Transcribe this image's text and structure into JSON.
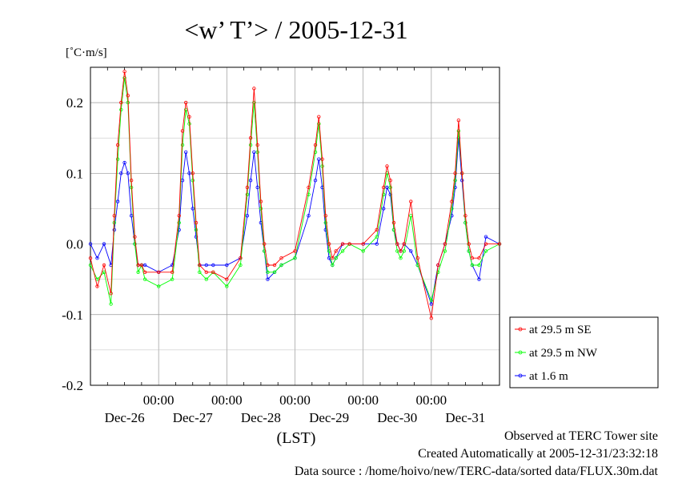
{
  "chart_data": {
    "type": "line",
    "title": "<w’ T’> / 2005-12-31",
    "ylabel": "[˚C·m/s]",
    "xlabel": "(LST)",
    "ylim": [
      -0.2,
      0.25
    ],
    "yticks": [
      "0.2",
      "0.1",
      "0.0",
      "-0.1",
      "-0.2"
    ],
    "x_time_labels": [
      "00:00",
      "00:00",
      "00:00",
      "00:00",
      "00:00"
    ],
    "x_day_labels": [
      "Dec-26",
      "Dec-27",
      "Dec-28",
      "Dec-29",
      "Dec-30",
      "Dec-31"
    ],
    "x_unit": "days since 2005-12-26 00:00 LST",
    "xlim": [
      0,
      6
    ],
    "grid": true,
    "legend_position": "right",
    "series": [
      {
        "name": "at 29.5 m SE",
        "color": "#ff0000",
        "x": [
          0,
          0.1,
          0.2,
          0.3,
          0.35,
          0.4,
          0.45,
          0.5,
          0.55,
          0.6,
          0.65,
          0.7,
          0.75,
          0.8,
          1.0,
          1.2,
          1.3,
          1.35,
          1.4,
          1.45,
          1.5,
          1.55,
          1.6,
          1.7,
          1.8,
          2.0,
          2.2,
          2.3,
          2.35,
          2.4,
          2.45,
          2.5,
          2.55,
          2.6,
          2.7,
          2.8,
          3.0,
          3.2,
          3.3,
          3.35,
          3.4,
          3.45,
          3.5,
          3.55,
          3.6,
          3.7,
          3.8,
          4.0,
          4.2,
          4.3,
          4.35,
          4.4,
          4.45,
          4.5,
          4.55,
          4.6,
          4.7,
          4.8,
          5.0,
          5.1,
          5.2,
          5.3,
          5.35,
          5.4,
          5.45,
          5.5,
          5.55,
          5.6,
          5.7,
          5.8,
          6.0
        ],
        "y": [
          -0.02,
          -0.06,
          -0.03,
          -0.07,
          0.04,
          0.14,
          0.2,
          0.244,
          0.21,
          0.09,
          0.01,
          -0.03,
          -0.03,
          -0.04,
          -0.04,
          -0.04,
          0.04,
          0.16,
          0.2,
          0.18,
          0.1,
          0.03,
          -0.03,
          -0.04,
          -0.04,
          -0.05,
          -0.02,
          0.08,
          0.15,
          0.22,
          0.14,
          0.06,
          0.0,
          -0.03,
          -0.03,
          -0.02,
          -0.01,
          0.08,
          0.14,
          0.18,
          0.12,
          0.04,
          0.0,
          -0.02,
          -0.01,
          0.0,
          0.0,
          0.0,
          0.02,
          0.08,
          0.11,
          0.09,
          0.03,
          0.0,
          -0.01,
          0.0,
          0.06,
          -0.02,
          -0.105,
          -0.03,
          0.0,
          0.06,
          0.1,
          0.175,
          0.1,
          0.04,
          0.0,
          -0.02,
          -0.02,
          0.0,
          0.0
        ]
      },
      {
        "name": "at 29.5 m NW",
        "color": "#00ff00",
        "x": [
          0,
          0.1,
          0.2,
          0.3,
          0.35,
          0.4,
          0.45,
          0.5,
          0.55,
          0.6,
          0.65,
          0.7,
          0.75,
          0.8,
          1.0,
          1.2,
          1.3,
          1.35,
          1.4,
          1.45,
          1.5,
          1.55,
          1.6,
          1.7,
          1.8,
          2.0,
          2.2,
          2.3,
          2.35,
          2.4,
          2.45,
          2.5,
          2.55,
          2.6,
          2.7,
          2.8,
          3.0,
          3.2,
          3.3,
          3.35,
          3.4,
          3.45,
          3.5,
          3.55,
          3.6,
          3.7,
          3.8,
          4.0,
          4.2,
          4.3,
          4.35,
          4.4,
          4.45,
          4.5,
          4.55,
          4.6,
          4.7,
          4.8,
          5.0,
          5.1,
          5.2,
          5.3,
          5.35,
          5.4,
          5.45,
          5.5,
          5.55,
          5.6,
          5.7,
          5.8,
          6.0
        ],
        "y": [
          -0.03,
          -0.05,
          -0.04,
          -0.085,
          0.03,
          0.12,
          0.19,
          0.235,
          0.2,
          0.08,
          0.0,
          -0.04,
          -0.03,
          -0.05,
          -0.06,
          -0.05,
          0.03,
          0.14,
          0.19,
          0.17,
          0.09,
          0.02,
          -0.04,
          -0.05,
          -0.04,
          -0.06,
          -0.03,
          0.07,
          0.14,
          0.2,
          0.13,
          0.05,
          -0.01,
          -0.04,
          -0.04,
          -0.03,
          -0.02,
          0.07,
          0.13,
          0.17,
          0.11,
          0.03,
          -0.01,
          -0.03,
          -0.02,
          -0.01,
          0.0,
          -0.01,
          0.01,
          0.07,
          0.1,
          0.08,
          0.02,
          -0.01,
          -0.02,
          -0.01,
          0.04,
          -0.03,
          -0.08,
          -0.04,
          -0.01,
          0.05,
          0.09,
          0.16,
          0.1,
          0.03,
          -0.01,
          -0.03,
          -0.03,
          -0.01,
          0.0
        ]
      },
      {
        "name": "at 1.6 m",
        "color": "#0000ff",
        "x": [
          0,
          0.1,
          0.2,
          0.3,
          0.35,
          0.4,
          0.45,
          0.5,
          0.55,
          0.6,
          0.65,
          0.7,
          0.75,
          0.8,
          1.0,
          1.2,
          1.3,
          1.35,
          1.4,
          1.45,
          1.5,
          1.55,
          1.6,
          1.7,
          1.8,
          2.0,
          2.2,
          2.3,
          2.35,
          2.4,
          2.45,
          2.5,
          2.55,
          2.6,
          2.7,
          2.8,
          3.0,
          3.2,
          3.3,
          3.35,
          3.4,
          3.45,
          3.5,
          3.55,
          3.6,
          3.7,
          3.8,
          4.0,
          4.2,
          4.3,
          4.35,
          4.4,
          4.45,
          4.5,
          4.55,
          4.6,
          4.7,
          4.8,
          5.0,
          5.1,
          5.2,
          5.3,
          5.35,
          5.4,
          5.45,
          5.5,
          5.55,
          5.6,
          5.7,
          5.8,
          6.0
        ],
        "y": [
          0.0,
          -0.02,
          0.0,
          -0.03,
          0.02,
          0.06,
          0.1,
          0.115,
          0.1,
          0.04,
          0.0,
          -0.03,
          -0.03,
          -0.03,
          -0.04,
          -0.03,
          0.02,
          0.09,
          0.13,
          0.1,
          0.05,
          0.01,
          -0.03,
          -0.03,
          -0.03,
          -0.03,
          -0.02,
          0.04,
          0.09,
          0.13,
          0.08,
          0.03,
          -0.01,
          -0.05,
          -0.04,
          -0.03,
          -0.02,
          0.04,
          0.09,
          0.12,
          0.08,
          0.02,
          -0.02,
          -0.03,
          -0.02,
          0.0,
          0.0,
          0.0,
          0.0,
          0.05,
          0.08,
          0.07,
          0.02,
          0.0,
          -0.01,
          0.0,
          -0.01,
          -0.03,
          -0.085,
          -0.03,
          0.0,
          0.04,
          0.08,
          0.15,
          0.09,
          0.03,
          -0.01,
          -0.03,
          -0.05,
          0.01,
          0.0
        ]
      }
    ]
  },
  "footer": {
    "line1": "Observed at TERC Tower site",
    "line2": "Created Automatically at 2005-12-31/23:32:18",
    "line3": "Data source : /home/hoivo/new/TERC-data/sorted  data/FLUX.30m.dat"
  }
}
